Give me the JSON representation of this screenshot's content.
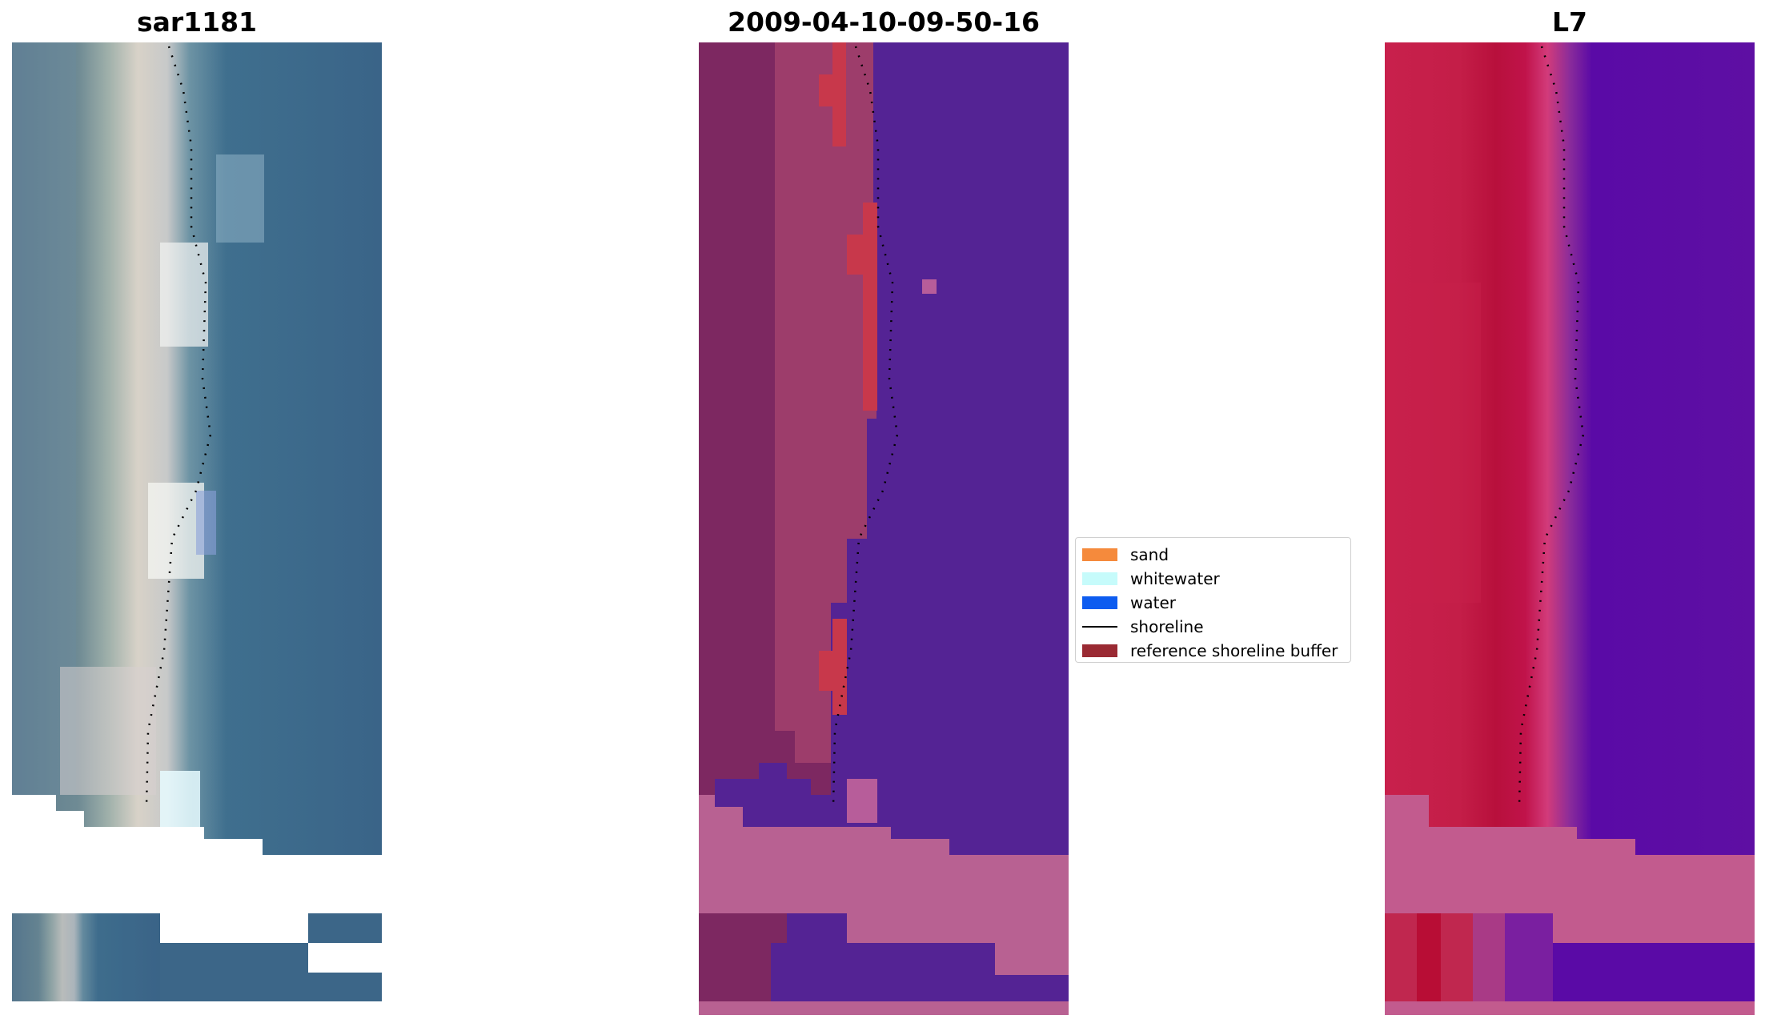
{
  "panels": [
    {
      "title": "sar1181"
    },
    {
      "title": "2009-04-10-09-50-16"
    },
    {
      "title": "L7"
    }
  ],
  "legend": {
    "items": [
      {
        "label": "sand",
        "color": "#f58a3c"
      },
      {
        "label": "whitewater",
        "color": "#c6fbfb"
      },
      {
        "label": "water",
        "color": "#0d5cf0"
      },
      {
        "label": "shoreline",
        "color": "#000000"
      },
      {
        "label": "reference shoreline buffer",
        "color": "#9a2a33"
      }
    ]
  }
}
